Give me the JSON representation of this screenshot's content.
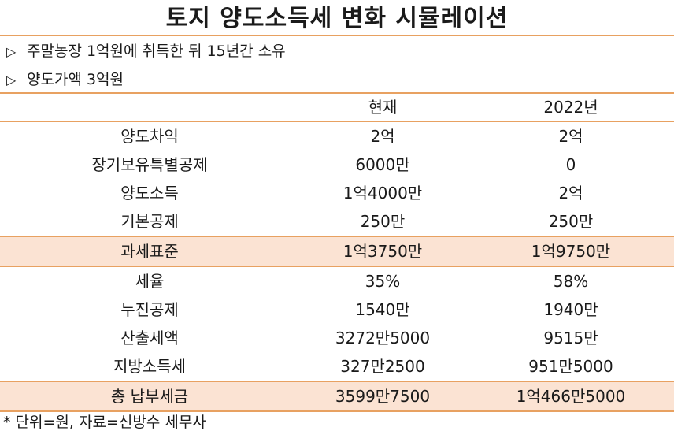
{
  "title": "토지 양도소득세 변화 시뮬레이션",
  "bullets": [
    "주말농장 1억원에 취득한 뒤 15년간 소유",
    "양도가액 3억원"
  ],
  "bullet_marker": "▷",
  "table": {
    "columns": [
      "",
      "현재",
      "2022년"
    ],
    "rows": [
      {
        "label": "양도차익",
        "current": "2억",
        "y2022": "2억"
      },
      {
        "label": "장기보유특별공제",
        "current": "6000만",
        "y2022": "0"
      },
      {
        "label": "양도소득",
        "current": "1억4000만",
        "y2022": "2억"
      },
      {
        "label": "기본공제",
        "current": "250만",
        "y2022": "250만"
      },
      {
        "label": "과세표준",
        "current": "1억3750만",
        "y2022": "1억9750만"
      },
      {
        "label": "세율",
        "current": "35%",
        "y2022": "58%"
      },
      {
        "label": "누진공제",
        "current": "1540만",
        "y2022": "1940만"
      },
      {
        "label": "산출세액",
        "current": "3272만5000",
        "y2022": "9515만"
      },
      {
        "label": "지방소득세",
        "current": "327만2500",
        "y2022": "951만5000"
      },
      {
        "label": "총 납부세금",
        "current": "3599만7500",
        "y2022": "1억466만5000"
      }
    ]
  },
  "footnote": "* 단위=원, 자료=신방수 세무사",
  "colors": {
    "rule": "#e8a161",
    "highlight": "#fbe3d3",
    "text": "#1a1a1a"
  }
}
